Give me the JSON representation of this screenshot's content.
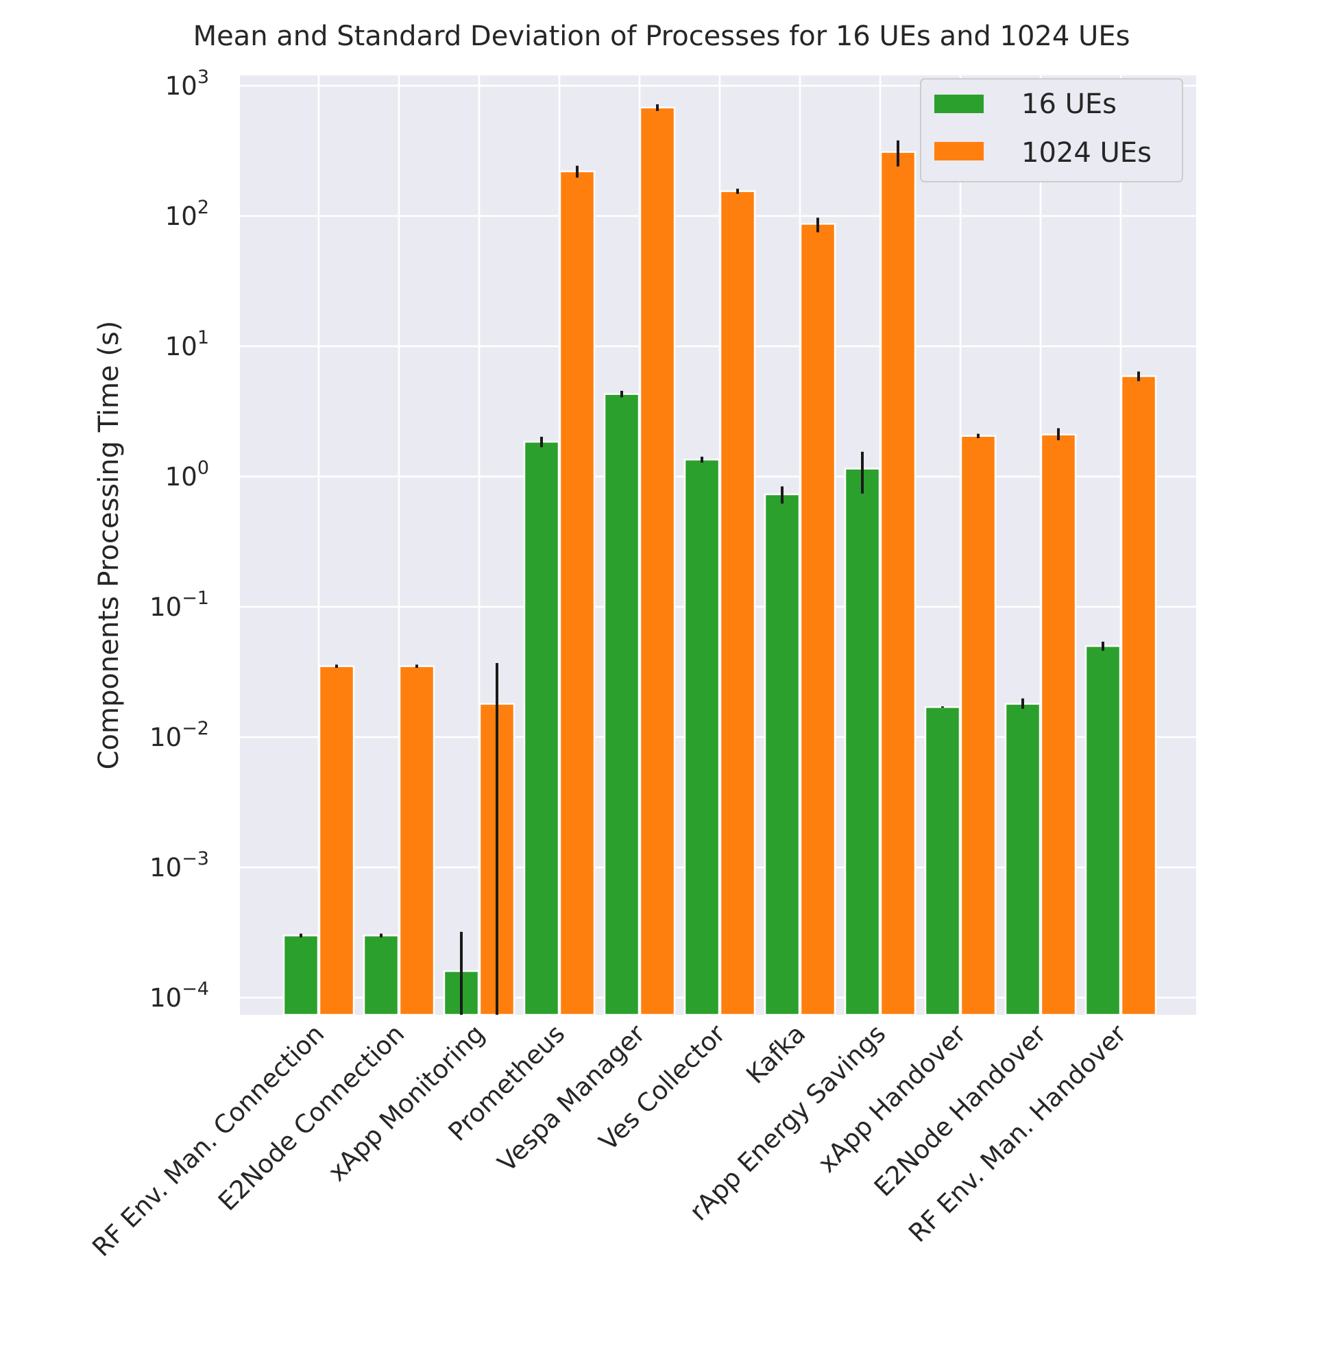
{
  "chart_data": {
    "type": "bar",
    "title": "Mean and Standard Deviation of Processes for 16 UEs and 1024 UEs",
    "xlabel": "",
    "ylabel": "Components Processing Time (s)",
    "yscale": "log",
    "ylim": [
      7e-05,
      1500
    ],
    "yticks": [
      {
        "value": 0.0001,
        "base": "10",
        "exp": "−4"
      },
      {
        "value": 0.001,
        "base": "10",
        "exp": "−3"
      },
      {
        "value": 0.01,
        "base": "10",
        "exp": "−2"
      },
      {
        "value": 0.1,
        "base": "10",
        "exp": "−1"
      },
      {
        "value": 1,
        "base": "10",
        "exp": "0"
      },
      {
        "value": 10,
        "base": "10",
        "exp": "1"
      },
      {
        "value": 100,
        "base": "10",
        "exp": "2"
      },
      {
        "value": 1000,
        "base": "10",
        "exp": "3"
      }
    ],
    "grid": true,
    "legend_position": "top-right",
    "categories": [
      "RF Env. Man. Connection",
      "E2Node Connection",
      "xApp Monitoring",
      "Prometheus",
      "Vespa Manager",
      "Ves Collector",
      "Kafka",
      "rApp Energy Savings",
      "xApp Handover",
      "E2Node Handover",
      "RF Env. Man. Handover"
    ],
    "series": [
      {
        "name": "16 UEs",
        "color": "#2ca02c",
        "values": [
          0.0003,
          0.0003,
          0.00016,
          1.85,
          4.3,
          1.35,
          0.73,
          1.15,
          0.017,
          0.018,
          0.05
        ],
        "err_low": [
          0.00029,
          0.00029,
          7e-05,
          1.68,
          4.05,
          1.28,
          0.62,
          0.74,
          0.0168,
          0.0165,
          0.046
        ],
        "err_high": [
          0.00031,
          0.00031,
          0.00032,
          2.02,
          4.55,
          1.42,
          0.84,
          1.55,
          0.0172,
          0.0198,
          0.054
        ]
      },
      {
        "name": "1024 UEs",
        "color": "#ff7f0e",
        "values": [
          0.035,
          0.035,
          0.018,
          220,
          680,
          155,
          87,
          310,
          2.05,
          2.1,
          5.9
        ],
        "err_low": [
          0.034,
          0.034,
          7e-05,
          197,
          640,
          148,
          75,
          240,
          1.97,
          1.9,
          5.4
        ],
        "err_high": [
          0.036,
          0.036,
          0.037,
          243,
          720,
          162,
          97,
          380,
          2.13,
          2.35,
          6.4
        ]
      }
    ]
  }
}
